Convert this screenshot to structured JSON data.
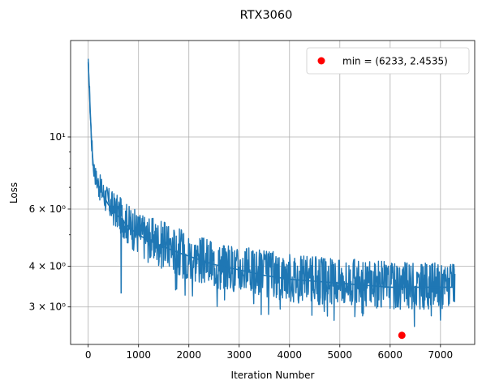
{
  "chart_data": {
    "type": "line",
    "title": "RTX3060",
    "xlabel": "Iteration Number",
    "ylabel": "Loss",
    "yscale": "log",
    "xlim": [
      -350,
      7680
    ],
    "ylim": [
      2.3,
      19.8
    ],
    "grid": true,
    "legend_placement": "top-right",
    "x_ticks": [
      {
        "value": 0,
        "label": "0"
      },
      {
        "value": 1000,
        "label": "1000"
      },
      {
        "value": 2000,
        "label": "2000"
      },
      {
        "value": 3000,
        "label": "3000"
      },
      {
        "value": 4000,
        "label": "4000"
      },
      {
        "value": 5000,
        "label": "5000"
      },
      {
        "value": 6000,
        "label": "6000"
      },
      {
        "value": 7000,
        "label": "7000"
      }
    ],
    "y_ticks": [
      {
        "value": 3,
        "label": "3 × 10⁰"
      },
      {
        "value": 4,
        "label": "4 × 10⁰"
      },
      {
        "value": 6,
        "label": "6 × 10⁰"
      },
      {
        "value": 10,
        "label": "10¹"
      }
    ],
    "y_minor_ticks": [
      5,
      7,
      8,
      9
    ],
    "series": [
      {
        "color": "#1f77b4",
        "x": [
          0,
          20,
          40,
          60,
          80,
          100,
          150,
          200,
          300,
          400,
          500,
          600,
          650,
          655,
          660,
          700,
          800,
          1000,
          1200,
          1500,
          1800,
          2000,
          2500,
          3000,
          3500,
          4000,
          4500,
          5000,
          5500,
          6000,
          6500,
          7000,
          7290
        ],
        "y": [
          17.0,
          14.5,
          12.0,
          10.2,
          9.0,
          8.2,
          7.5,
          7.1,
          6.6,
          6.2,
          5.9,
          5.7,
          5.6,
          3.3,
          5.6,
          5.5,
          5.3,
          5.0,
          4.8,
          4.6,
          4.4,
          4.3,
          4.05,
          3.9,
          3.75,
          3.65,
          3.6,
          3.55,
          3.5,
          3.45,
          3.45,
          3.45,
          3.45
        ],
        "upper": [
          17.5,
          15.5,
          13.0,
          11.0,
          9.6,
          8.8,
          8.1,
          7.8,
          7.4,
          7.0,
          6.8,
          6.6,
          6.5,
          6.5,
          6.5,
          6.4,
          6.2,
          5.9,
          5.7,
          5.5,
          5.3,
          5.1,
          4.8,
          4.6,
          4.5,
          4.4,
          4.3,
          4.25,
          4.2,
          4.15,
          4.1,
          4.1,
          4.05
        ],
        "lower": [
          16.5,
          13.5,
          11.0,
          9.4,
          8.4,
          7.6,
          7.0,
          6.5,
          6.0,
          5.6,
          5.3,
          5.1,
          5.0,
          5.0,
          5.0,
          4.9,
          4.6,
          4.3,
          4.1,
          3.9,
          3.7,
          3.6,
          3.4,
          3.3,
          3.2,
          3.1,
          3.05,
          3.0,
          3.0,
          2.95,
          2.95,
          2.95,
          3.0
        ]
      },
      {
        "name": "min = (6233, 2.4535)",
        "type": "scatter",
        "color": "#ff0000",
        "x": [
          6233
        ],
        "y": [
          2.4535
        ]
      }
    ]
  }
}
